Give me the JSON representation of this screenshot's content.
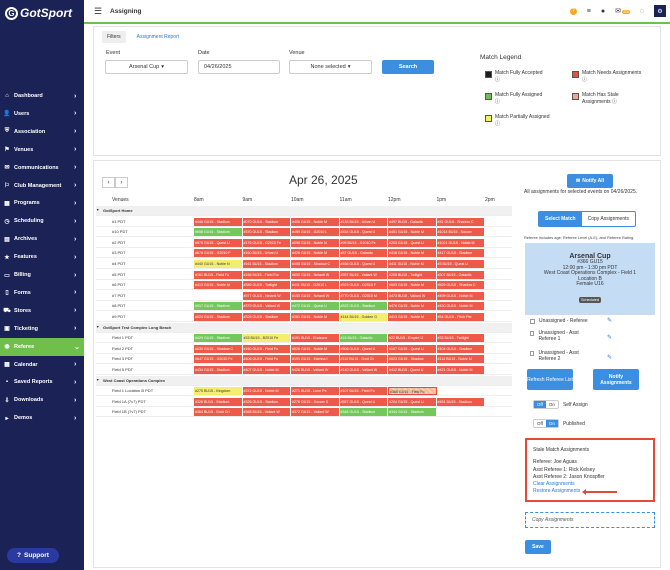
{
  "brand": {
    "logo_text": "GotSport"
  },
  "topbar": {
    "title": "Assigning",
    "msg_badge": "326"
  },
  "sidebar": {
    "items": [
      {
        "label": "Dashboard",
        "icon": "home-icon"
      },
      {
        "label": "Users",
        "icon": "user-icon"
      },
      {
        "label": "Association",
        "icon": "shield-icon"
      },
      {
        "label": "Venues",
        "icon": "map-icon"
      },
      {
        "label": "Communications",
        "icon": "mail-icon"
      },
      {
        "label": "Club Management",
        "icon": "flag-icon"
      },
      {
        "label": "Programs",
        "icon": "calendar-icon"
      },
      {
        "label": "Scheduling",
        "icon": "clock-icon"
      },
      {
        "label": "Archives",
        "icon": "archive-icon"
      },
      {
        "label": "Features",
        "icon": "star-icon"
      },
      {
        "label": "Billing",
        "icon": "card-icon"
      },
      {
        "label": "Forms",
        "icon": "file-icon"
      },
      {
        "label": "Stores",
        "icon": "cart-icon"
      },
      {
        "label": "Ticketing",
        "icon": "ticket-icon"
      },
      {
        "label": "Referee",
        "icon": "whistle-icon",
        "active": true
      },
      {
        "label": "Calendar",
        "icon": "calendar-icon"
      },
      {
        "label": "Saved Reports",
        "icon": "save-icon"
      },
      {
        "label": "Downloads",
        "icon": "download-icon"
      },
      {
        "label": "Demos",
        "icon": "play-icon"
      }
    ],
    "support_label": "Support"
  },
  "filters": {
    "tabs": [
      "Filters",
      "Assignment Report"
    ],
    "event_label": "Event",
    "event_value": "Arsenal Cup",
    "date_label": "Date",
    "date_value": "04/26/2025",
    "venue_label": "Venue",
    "venue_value": "None selected",
    "search_label": "Search"
  },
  "legend": {
    "title": "Match Legend",
    "items": [
      {
        "label": "Match Fully Accepted",
        "color": "#1b1b1b"
      },
      {
        "label": "Match Needs Assignments",
        "color": "#e8503a"
      },
      {
        "label": "Match Fully Assigned",
        "color": "#6fc04b"
      },
      {
        "label": "Match Has Stale Assignments",
        "color": "#f2a38a"
      },
      {
        "label": "Match Partially Assigned",
        "color": "#f5f06a"
      }
    ]
  },
  "schedule": {
    "date_title": "Apr 26, 2025",
    "prev": "‹",
    "next": "›",
    "venues_header": "Venues",
    "hours": [
      "8am",
      "9am",
      "10am",
      "11am",
      "12pm",
      "1pm",
      "2pm"
    ],
    "rows": [
      {
        "name": "GotSport Home",
        "section": true
      },
      {
        "name": "#1 PDT",
        "cells": [
          {
            "s": 0,
            "w": 1,
            "c": "r",
            "t": "#446 GU15 - Stadium"
          },
          {
            "s": 1,
            "w": 1,
            "c": "r",
            "t": "#070 GU15 - Stadium"
          },
          {
            "s": 2,
            "w": 1,
            "c": "r",
            "t": "#406 GU15 - Noble M"
          },
          {
            "s": 3,
            "w": 1,
            "c": "r",
            "t": "#133 BU15 - Urban U"
          },
          {
            "s": 4,
            "w": 1,
            "c": "r",
            "t": "#497 BU15 - Galactic"
          },
          {
            "s": 5,
            "w": 1,
            "c": "r",
            "t": "#31 GU15 - Shadow C"
          }
        ]
      },
      {
        "name": "#10 PDT",
        "cells": [
          {
            "s": 0,
            "w": 1,
            "c": "g",
            "t": "#658 GU15 - Stadium"
          },
          {
            "s": 1,
            "w": 1,
            "c": "r",
            "t": "#370 GU15 - Stadium"
          },
          {
            "s": 2,
            "w": 1,
            "c": "r",
            "t": "#459 GU15 - G2010 L"
          },
          {
            "s": 3,
            "w": 1,
            "c": "r",
            "t": "#454 GU15 - Quest U"
          },
          {
            "s": 4,
            "w": 1,
            "c": "r",
            "t": "#401 GU15 - Noble M"
          },
          {
            "s": 5,
            "w": 1,
            "c": "r",
            "t": "#1014 BU15 - Soccer"
          }
        ]
      },
      {
        "name": "#2 PDT",
        "cells": [
          {
            "s": 0,
            "w": 1,
            "c": "r",
            "t": "#575 GU15 - Quest U"
          },
          {
            "s": 1,
            "w": 1,
            "c": "r",
            "t": "#176 GU15 - G2010 Fe"
          },
          {
            "s": 2,
            "w": 1,
            "c": "r",
            "t": "#598 GU15 - Noble N"
          },
          {
            "s": 3,
            "w": 1,
            "c": "r",
            "t": "#99 BU15 - G2010 Fe"
          },
          {
            "s": 4,
            "w": 1,
            "c": "r",
            "t": "#203 GU15 - Quest U"
          },
          {
            "s": 5,
            "w": 1,
            "c": "r",
            "t": "#1021 GU15 - Noble M"
          }
        ]
      },
      {
        "name": "#3 PDT",
        "cells": [
          {
            "s": 0,
            "w": 1,
            "c": "r",
            "t": "#678 GU15 - G2010 F"
          },
          {
            "s": 1,
            "w": 1,
            "c": "r",
            "t": "#160 BU15 - Urban U"
          },
          {
            "s": 2,
            "w": 1,
            "c": "r",
            "t": "#426 GU15 - Noble M"
          },
          {
            "s": 3,
            "w": 1,
            "c": "r",
            "t": "#87 GU15 - Galactic"
          },
          {
            "s": 4,
            "w": 1,
            "c": "r",
            "t": "#418 GU15 - Noble M"
          },
          {
            "s": 5,
            "w": 1,
            "c": "r",
            "t": "#417 GU15 - Stadium"
          }
        ]
      },
      {
        "name": "#4 PDT",
        "cells": [
          {
            "s": 0,
            "w": 1,
            "c": "y",
            "t": "#440 GU15 - Noble N"
          },
          {
            "s": 1,
            "w": 1,
            "c": "r",
            "t": "#161 BU15 - Stadium"
          },
          {
            "s": 2,
            "w": 1,
            "c": "r",
            "t": "#408 GU15 - Shadow C"
          },
          {
            "s": 3,
            "w": 1,
            "c": "r",
            "t": "#456 GU15 - Quest U"
          },
          {
            "s": 4,
            "w": 1,
            "c": "r",
            "t": "#411 GU15 - Noble M"
          },
          {
            "s": 5,
            "w": 1,
            "c": "r",
            "t": "#3 BU15 - Quest U"
          }
        ]
      },
      {
        "name": "#5 PDT",
        "cells": [
          {
            "s": 0,
            "w": 1,
            "c": "r",
            "t": "#161 BU15 - Field Fo"
          },
          {
            "s": 1,
            "w": 1,
            "c": "r",
            "t": "#166 BU15 - Field For"
          },
          {
            "s": 2,
            "w": 1,
            "c": "r",
            "t": "#600 GU15 - Nelanti W"
          },
          {
            "s": 3,
            "w": 1,
            "c": "r",
            "t": "#557 BU15 - Valiant W"
          },
          {
            "s": 4,
            "w": 1,
            "c": "r",
            "t": "#205 BU15 - Twilight"
          },
          {
            "s": 5,
            "w": 1,
            "c": "r",
            "t": "#307 BU15 - Galactic"
          }
        ]
      },
      {
        "name": "#6 PDT",
        "cells": [
          {
            "s": 0,
            "w": 1,
            "c": "r",
            "t": "#413 GU15 - Noble M"
          },
          {
            "s": 1,
            "w": 1,
            "c": "r",
            "t": "#389 GU15 - Twilight"
          },
          {
            "s": 2,
            "w": 1,
            "c": "r",
            "t": "#411 GU15 - G2010 L"
          },
          {
            "s": 3,
            "w": 1,
            "c": "r",
            "t": "#523 GU15 - G2010 F"
          },
          {
            "s": 4,
            "w": 1,
            "c": "r",
            "t": "#603 GU15 - Noble M"
          },
          {
            "s": 5,
            "w": 1,
            "c": "r",
            "t": "#529 GU15 - Shadow C"
          }
        ]
      },
      {
        "name": "#7 PDT",
        "cells": [
          {
            "s": 1,
            "w": 1,
            "c": "r",
            "t": "#577 GU15 - Nelanti W"
          },
          {
            "s": 2,
            "w": 1,
            "c": "r",
            "t": "#155 GU15 - Nelanti W"
          },
          {
            "s": 3,
            "w": 1,
            "c": "r",
            "t": "#770 GU15 - G2010 M"
          },
          {
            "s": 4,
            "w": 1,
            "c": "r",
            "t": "#473 BU15 - Valiant W"
          },
          {
            "s": 5,
            "w": 1,
            "c": "r",
            "t": "#499 GU15 - Noble M"
          }
        ]
      },
      {
        "name": "#8 PDT",
        "cells": [
          {
            "s": 0,
            "w": 1,
            "c": "g",
            "t": "#517 GU15 - Stadium"
          },
          {
            "s": 1,
            "w": 1,
            "c": "r",
            "t": "#379 GU15 - Valiant W"
          },
          {
            "s": 2,
            "w": 1,
            "c": "g",
            "t": "#472 GU15 - Quest U"
          },
          {
            "s": 3,
            "w": 1,
            "c": "g",
            "t": "#522 GU15 - Stadium"
          },
          {
            "s": 4,
            "w": 1,
            "c": "r",
            "t": "#476 GU15 - Noble M"
          },
          {
            "s": 5,
            "w": 1,
            "c": "r",
            "t": "#430 GU15 - Noble M"
          }
        ]
      },
      {
        "name": "#9 PDT",
        "cells": [
          {
            "s": 0,
            "w": 1,
            "c": "r",
            "t": "#624 GU15 - Stadium"
          },
          {
            "s": 1,
            "w": 1,
            "c": "r",
            "t": "#325 GU15 - Stadium"
          },
          {
            "s": 2,
            "w": 1,
            "c": "r",
            "t": "#381 GU15 - Noble M"
          },
          {
            "s": 3,
            "w": 1,
            "c": "y",
            "t": "#144 BU15 - Golden G"
          },
          {
            "s": 4,
            "w": 1,
            "c": "r",
            "t": "#413 GU15 - Noble M"
          },
          {
            "s": 5,
            "w": 1,
            "c": "r",
            "t": "#54 GU15 - Pitch Per"
          }
        ]
      },
      {
        "name": "GotSport Test Complex Long Beach",
        "section": true
      },
      {
        "name": "Field 1 PDT",
        "cells": [
          {
            "s": 0,
            "w": 1,
            "c": "g",
            "t": "#429 GU15 - Stadium"
          },
          {
            "s": 1,
            "w": 1,
            "c": "y",
            "t": "#15 BU15 - B2010 Fe"
          },
          {
            "s": 2,
            "w": 1,
            "c": "r",
            "t": "#191 BU15 - Endzone"
          },
          {
            "s": 3,
            "w": 1,
            "c": "g",
            "t": "#18 BU15 - Galactic"
          },
          {
            "s": 4,
            "w": 1,
            "c": "r",
            "t": "#22 BU15 - Empire U"
          },
          {
            "s": 5,
            "w": 1,
            "c": "r",
            "t": "#33 BU15 - Twilight"
          }
        ]
      },
      {
        "name": "Field 2 PDT",
        "cells": [
          {
            "s": 0,
            "w": 1,
            "c": "r",
            "t": "#630 GU15 - Shadow C"
          },
          {
            "s": 1,
            "w": 1,
            "c": "r",
            "t": "#160 GU15 - Field Fo"
          },
          {
            "s": 2,
            "w": 1,
            "c": "r",
            "t": "#526 GU15 - Noble M"
          },
          {
            "s": 3,
            "w": 1,
            "c": "r",
            "t": "#506 GU15 - Quest U"
          },
          {
            "s": 4,
            "w": 1,
            "c": "r",
            "t": "#107 GU15 - Quest U"
          },
          {
            "s": 5,
            "w": 1,
            "c": "r",
            "t": "#104 GU15 - Stadium"
          }
        ]
      },
      {
        "name": "Field 3 PDT",
        "cells": [
          {
            "s": 0,
            "w": 1,
            "c": "r",
            "t": "#647 GU15 - G2010 Fe"
          },
          {
            "s": 1,
            "w": 1,
            "c": "r",
            "t": "#406 GU15 - Field Fo"
          },
          {
            "s": 2,
            "w": 1,
            "c": "r",
            "t": "#191 GU15 - Mamba I"
          },
          {
            "s": 3,
            "w": 1,
            "c": "r",
            "t": "#110 BU15 - Gold Gr"
          },
          {
            "s": 4,
            "w": 1,
            "c": "r",
            "t": "#523 GU15 - Shadow"
          },
          {
            "s": 5,
            "w": 1,
            "c": "r",
            "t": "#114 BU15 - Noble M"
          }
        ]
      },
      {
        "name": "Field 5 PDT",
        "cells": [
          {
            "s": 0,
            "w": 1,
            "c": "r",
            "t": "#434 GU15 - Stadium"
          },
          {
            "s": 1,
            "w": 1,
            "c": "r",
            "t": "#407 GU15 - Noble M"
          },
          {
            "s": 2,
            "w": 1,
            "c": "r",
            "t": "#426 BU15 - Valiant W"
          },
          {
            "s": 3,
            "w": 1,
            "c": "r",
            "t": "#140 GU15 - Valiant W"
          },
          {
            "s": 4,
            "w": 1,
            "c": "r",
            "t": "#412 BU15 - Quest U"
          },
          {
            "s": 5,
            "w": 1,
            "c": "r",
            "t": "#421 GU15 - Noble M"
          }
        ]
      },
      {
        "name": "West Coast Operations Complex",
        "section": true
      },
      {
        "name": "Field 1 Location B PDT",
        "cells": [
          {
            "s": 0,
            "w": 1,
            "c": "y",
            "t": "#275 BU15 - Kingdom"
          },
          {
            "s": 1,
            "w": 1,
            "c": "r",
            "t": "#372 GU15 - Noble M"
          },
          {
            "s": 2,
            "w": 1,
            "c": "r",
            "t": "#271 BU15 - Lone Pe"
          },
          {
            "s": 3,
            "w": 1,
            "c": "r",
            "t": "#107 BU15 - Field Fo"
          },
          {
            "s": 4,
            "w": 1,
            "c": "s",
            "t": "#366 GU15 - Field Fo"
          }
        ]
      },
      {
        "name": "Field 1A (7v7) PDT",
        "cells": [
          {
            "s": 0,
            "w": 1,
            "c": "r",
            "t": "#326 BU15 - Stadium"
          },
          {
            "s": 1,
            "w": 1,
            "c": "r",
            "t": "#326 GU15 - Stadium"
          },
          {
            "s": 2,
            "w": 1,
            "c": "r",
            "t": "#276 GU15 - Soccer S"
          },
          {
            "s": 3,
            "w": 1,
            "c": "r",
            "t": "#557 GU15 - Quest U"
          },
          {
            "s": 4,
            "w": 1,
            "c": "r",
            "t": "#204 GU15 - Quest U"
          },
          {
            "s": 5,
            "w": 1,
            "c": "r",
            "t": "#451 BU15 - Stadium"
          }
        ]
      },
      {
        "name": "Field 1B (7v7) PDT",
        "cells": [
          {
            "s": 0,
            "w": 1,
            "c": "r",
            "t": "#364 BU15 - Gold Gri"
          },
          {
            "s": 1,
            "w": 1,
            "c": "r",
            "t": "#368 BU15 - Valiant W"
          },
          {
            "s": 2,
            "w": 1,
            "c": "r",
            "t": "#372 GU15 - Valiant W"
          },
          {
            "s": 3,
            "w": 1,
            "c": "g",
            "t": "#348 GU15 - Stadium"
          },
          {
            "s": 4,
            "w": 1,
            "c": "g",
            "t": "#344 GU15 - Stadium"
          }
        ]
      }
    ],
    "colors": {
      "r": "#ee5a49",
      "g": "#74c75a",
      "y": "#f4ee6e",
      "s": "#f4b99a"
    }
  },
  "assign": {
    "notify_all": "Notify All",
    "all_assignments_note": "All assignments for selected events on 04/26/2025.",
    "mode_tabs": [
      "Select Match",
      "Copy Assignments"
    ],
    "ref_note": "Referee includes age, Referee Level (A-E), and Referee Rating.",
    "match": {
      "title": "Arsenal Cup",
      "game": "#366 GU15",
      "time": "12:00 pm - 1:30 pm PDT",
      "location": "West Coast Operations Complex - Field 1",
      "location2": "Location B",
      "division": "Female U16",
      "status": "Scheduled"
    },
    "slots": [
      "Unassigned - Referee",
      "Unassigned - Asst Referee 1",
      "Unassigned - Asst Referee 2"
    ],
    "refresh_label": "Refresh Referee List",
    "notify_label": "Notify Assignments",
    "self_assign": {
      "label": "Self Assign",
      "off": "Off",
      "on": "On"
    },
    "published": {
      "label": "Published",
      "off": "Off",
      "on": "On"
    },
    "stale": {
      "title": "Stale Match Assignments",
      "ref": "Referee: Joe Aguas",
      "ar1": "Asst Referee 1: Rick Kelsey",
      "ar2": "Asst Referee 2: Jason Knospfler",
      "clear": "Clear Assignments",
      "restore": "Restore Assignments"
    },
    "copy_placeholder": "Copy Assignments",
    "save_label": "Save"
  }
}
